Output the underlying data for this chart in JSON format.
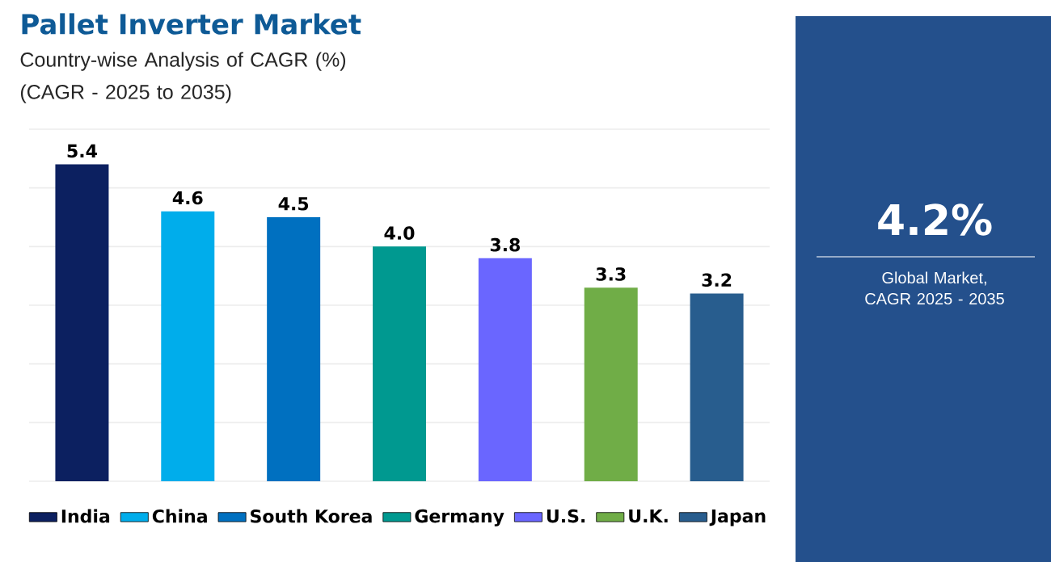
{
  "chart_data": [
    {
      "type": "bar",
      "title": "Pallet Inverter Market",
      "subtitle": "Country-wise Analysis of CAGR (%) (CAGR - 2025 to 2035)",
      "categories": [
        null,
        null,
        null,
        null,
        null,
        null,
        null
      ],
      "stacked": true,
      "series": [
        {
          "name": "India",
          "color": "#0c2060",
          "values": [
            5.4,
            null,
            null,
            null,
            null,
            null,
            null
          ],
          "value_labels": [
            "5.4",
            null,
            null,
            null,
            null,
            null,
            null
          ]
        },
        {
          "name": "China",
          "color": "#00adeb",
          "values": [
            null,
            4.6,
            null,
            null,
            null,
            null,
            null
          ],
          "value_labels": [
            null,
            "4.6",
            null,
            null,
            null,
            null,
            null
          ]
        },
        {
          "name": "South Korea",
          "color": "#0070c0",
          "values": [
            null,
            null,
            4.5,
            null,
            null,
            null,
            null
          ],
          "value_labels": [
            null,
            null,
            "4.5",
            null,
            null,
            null,
            null
          ]
        },
        {
          "name": "Germany",
          "color": "#009990",
          "values": [
            null,
            null,
            null,
            4.0,
            null,
            null,
            null
          ],
          "value_labels": [
            null,
            null,
            null,
            "4.0",
            null,
            null,
            null
          ]
        },
        {
          "name": "U.S.",
          "color": "#6a66ff",
          "values": [
            null,
            null,
            null,
            null,
            3.8,
            null,
            null
          ],
          "value_labels": [
            null,
            null,
            null,
            null,
            "3.8",
            null,
            null
          ]
        },
        {
          "name": "U.K.",
          "color": "#70ad47",
          "values": [
            null,
            null,
            null,
            null,
            null,
            3.3,
            null
          ],
          "value_labels": [
            null,
            null,
            null,
            null,
            null,
            "3.3",
            null
          ]
        },
        {
          "name": "Japan",
          "color": "#285d8e",
          "values": [
            null,
            null,
            null,
            null,
            null,
            null,
            3.2
          ],
          "value_labels": [
            null,
            null,
            null,
            null,
            null,
            null,
            "3.2"
          ]
        }
      ],
      "ylim": [
        0,
        6
      ],
      "yticks": [
        {
          "value": 0,
          "label": null
        },
        {
          "value": 1,
          "label": null
        },
        {
          "value": 2,
          "label": null
        },
        {
          "value": 3,
          "label": null
        },
        {
          "value": 4,
          "label": null
        },
        {
          "value": 5,
          "label": null
        },
        {
          "value": 6,
          "label": null
        }
      ],
      "grid": "y",
      "legend": "bottom"
    },
    {
      "type": "other",
      "title": "4.2%",
      "subtitle": "Global Market, CAGR 2025 - 2035"
    }
  ]
}
